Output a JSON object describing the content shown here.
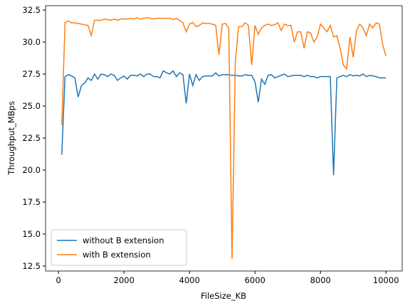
{
  "chart_data": {
    "type": "line",
    "xlabel": "FileSize_KB",
    "ylabel": "Throughput_MBps",
    "x": [
      100,
      200,
      300,
      400,
      500,
      600,
      700,
      800,
      900,
      1000,
      1100,
      1200,
      1300,
      1400,
      1500,
      1600,
      1700,
      1800,
      1900,
      2000,
      2100,
      2200,
      2300,
      2400,
      2500,
      2600,
      2700,
      2800,
      2900,
      3000,
      3100,
      3200,
      3300,
      3400,
      3500,
      3600,
      3700,
      3800,
      3900,
      4000,
      4100,
      4200,
      4300,
      4400,
      4500,
      4600,
      4700,
      4800,
      4900,
      5000,
      5100,
      5200,
      5300,
      5400,
      5500,
      5600,
      5700,
      5800,
      5900,
      6000,
      6100,
      6200,
      6300,
      6400,
      6500,
      6600,
      6700,
      6800,
      6900,
      7000,
      7100,
      7200,
      7300,
      7400,
      7500,
      7600,
      7700,
      7800,
      7900,
      8000,
      8100,
      8200,
      8300,
      8400,
      8500,
      8600,
      8700,
      8800,
      8900,
      9000,
      9100,
      9200,
      9300,
      9400,
      9500,
      9600,
      9700,
      9800,
      9900,
      10000
    ],
    "series": [
      {
        "name": "without B extension",
        "color": "#1f77b4",
        "values": [
          21.2,
          27.3,
          27.45,
          27.35,
          27.2,
          25.7,
          26.6,
          26.8,
          27.2,
          27.0,
          27.5,
          27.1,
          27.5,
          27.45,
          27.3,
          27.5,
          27.4,
          27.0,
          27.2,
          27.35,
          27.1,
          27.4,
          27.4,
          27.35,
          27.5,
          27.3,
          27.5,
          27.5,
          27.3,
          27.3,
          27.2,
          27.75,
          27.6,
          27.5,
          27.75,
          27.3,
          27.6,
          27.45,
          25.2,
          27.5,
          26.6,
          27.45,
          27.0,
          27.3,
          27.35,
          27.35,
          27.35,
          27.6,
          27.35,
          27.45,
          27.45,
          27.45,
          27.4,
          27.4,
          27.35,
          27.35,
          27.45,
          27.4,
          27.4,
          26.9,
          25.3,
          27.1,
          26.7,
          27.4,
          27.45,
          27.2,
          27.3,
          27.4,
          27.5,
          27.3,
          27.35,
          27.4,
          27.4,
          27.4,
          27.3,
          27.4,
          27.3,
          27.3,
          27.2,
          27.3,
          27.3,
          27.3,
          27.3,
          19.6,
          27.2,
          27.3,
          27.4,
          27.3,
          27.45,
          27.35,
          27.4,
          27.35,
          27.5,
          27.3,
          27.4,
          27.35,
          27.3,
          27.2,
          27.2,
          27.2
        ]
      },
      {
        "name": "with B extension",
        "color": "#ff7f0e",
        "values": [
          23.5,
          31.5,
          31.65,
          31.5,
          31.5,
          31.45,
          31.4,
          31.35,
          31.3,
          30.5,
          31.7,
          31.7,
          31.7,
          31.8,
          31.75,
          31.7,
          31.8,
          31.7,
          31.8,
          31.8,
          31.8,
          31.85,
          31.8,
          31.9,
          31.8,
          31.85,
          31.9,
          31.85,
          31.8,
          31.85,
          31.85,
          31.85,
          31.85,
          31.85,
          31.75,
          31.85,
          31.7,
          31.5,
          30.8,
          31.4,
          31.55,
          31.2,
          31.3,
          31.5,
          31.45,
          31.45,
          31.4,
          31.3,
          29.0,
          31.4,
          31.45,
          31.1,
          13.05,
          28.5,
          31.2,
          31.2,
          31.5,
          31.3,
          28.2,
          31.3,
          30.6,
          31.1,
          31.3,
          31.4,
          31.3,
          31.35,
          31.5,
          30.9,
          31.4,
          31.3,
          31.3,
          30.0,
          30.8,
          30.8,
          29.5,
          30.8,
          30.7,
          30.0,
          30.4,
          31.4,
          31.1,
          30.8,
          31.3,
          30.4,
          30.5,
          29.5,
          28.2,
          27.9,
          30.4,
          28.8,
          30.9,
          31.4,
          31.1,
          30.5,
          31.4,
          31.1,
          31.5,
          31.4,
          29.8,
          28.9
        ]
      }
    ],
    "xlim": [
      -395,
      10495
    ],
    "ylim": [
      12.11,
      32.84
    ],
    "xticks": [
      0,
      2000,
      4000,
      6000,
      8000,
      10000
    ],
    "yticks": [
      {
        "value": 12.5,
        "label": "12.5"
      },
      {
        "value": 15,
        "label": "15.0"
      },
      {
        "value": 17.5,
        "label": "17.5"
      },
      {
        "value": 20,
        "label": "20.0"
      },
      {
        "value": 22.5,
        "label": "22.5"
      },
      {
        "value": 25,
        "label": "25.0"
      },
      {
        "value": 27.5,
        "label": "27.5"
      },
      {
        "value": 30,
        "label": "30.0"
      },
      {
        "value": 32.5,
        "label": "32.5"
      }
    ],
    "grid": false,
    "legend": "lower left"
  }
}
